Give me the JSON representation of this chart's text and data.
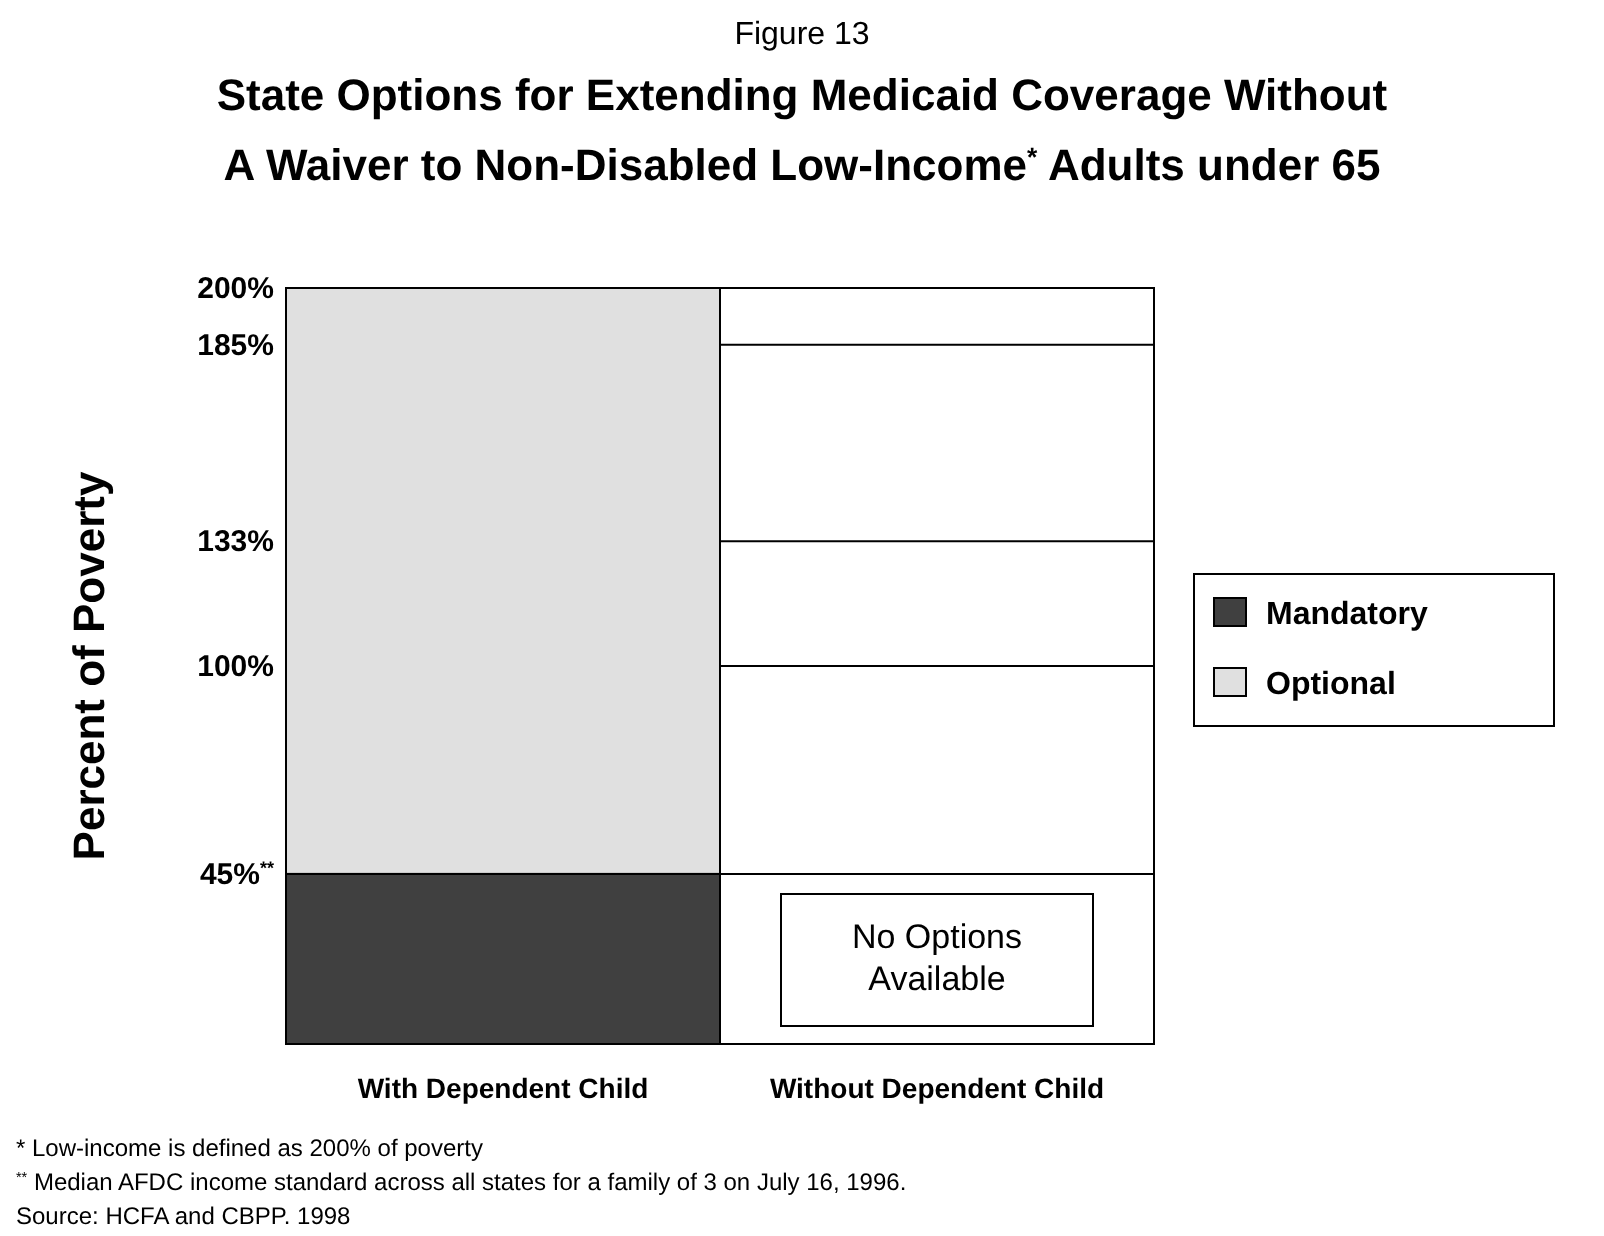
{
  "chart_data": {
    "type": "bar",
    "stacked": true,
    "subtitle": "Figure 13",
    "title": "State Options for Extending Medicaid Coverage Without A Waiver to Non-Disabled Low-Income$^{*}$ Adults under 65",
    "ylabel": "Percent of Poverty",
    "categories": [
      "With Dependent Child",
      "Without Dependent Child"
    ],
    "series": [
      {
        "name": "Mandatory",
        "color": "#404040",
        "values": [
          45,
          0
        ]
      },
      {
        "name": "Optional",
        "color": "#e0e0e0",
        "values": [
          155,
          0
        ]
      }
    ],
    "ylim": [
      0,
      200
    ],
    "yticks": [
      {
        "value": 45,
        "label": "45%$^{**}$"
      },
      {
        "value": 100,
        "label": "100%"
      },
      {
        "value": 133,
        "label": "133%"
      },
      {
        "value": 185,
        "label": "185%"
      },
      {
        "value": 200,
        "label": "200%"
      }
    ],
    "grid": "y",
    "legend": "right",
    "annotations": [
      "No Options Available",
      "*  Low-income is defined as 200% of poverty",
      "$^{**}$ Median AFDC income standard across all states for a family of 3 on July 16, 1996.",
      "Source:   HCFA and CBPP. 1998"
    ]
  }
}
